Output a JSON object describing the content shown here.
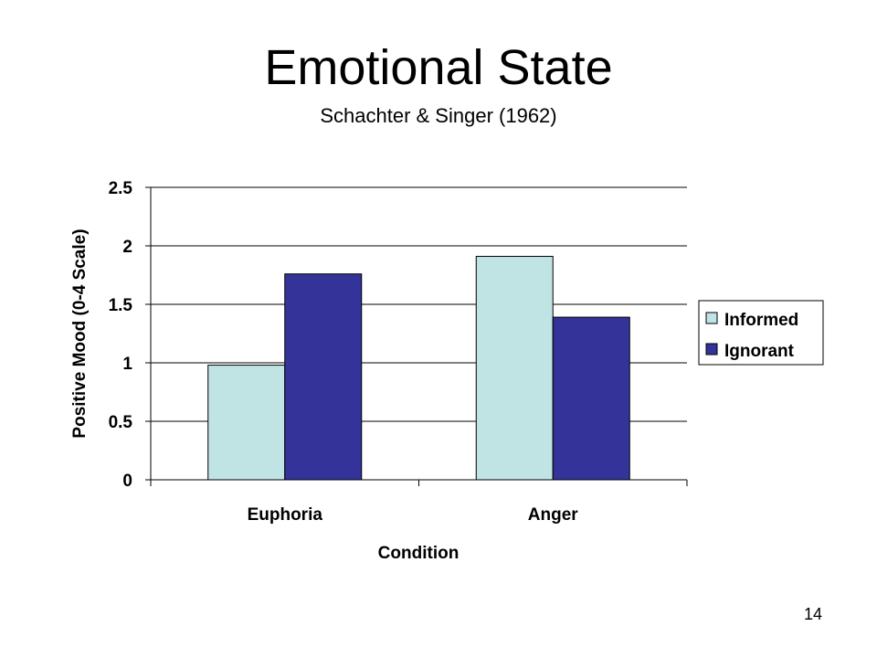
{
  "slide": {
    "title": "Emotional State",
    "subtitle": "Schachter & Singer (1962)",
    "page_number": "14"
  },
  "chart_data": {
    "type": "bar",
    "title": "",
    "categories": [
      "Euphoria",
      "Anger"
    ],
    "series": [
      {
        "name": "Informed",
        "color": "#c0e4e4",
        "values": [
          0.98,
          1.91
        ]
      },
      {
        "name": "Ignorant",
        "color": "#333399",
        "values": [
          1.76,
          1.39
        ]
      }
    ],
    "xlabel": "Condition",
    "ylabel": "Positive Mood (0-4 Scale)",
    "ylim": [
      0,
      2.5
    ],
    "yticks": [
      {
        "value": 0,
        "label": "0"
      },
      {
        "value": 0.5,
        "label": "0.5"
      },
      {
        "value": 1,
        "label": "1"
      },
      {
        "value": 1.5,
        "label": "1.5"
      },
      {
        "value": 2,
        "label": "2"
      },
      {
        "value": 2.5,
        "label": "2.5"
      }
    ],
    "grid": true,
    "legend_position": "right"
  }
}
